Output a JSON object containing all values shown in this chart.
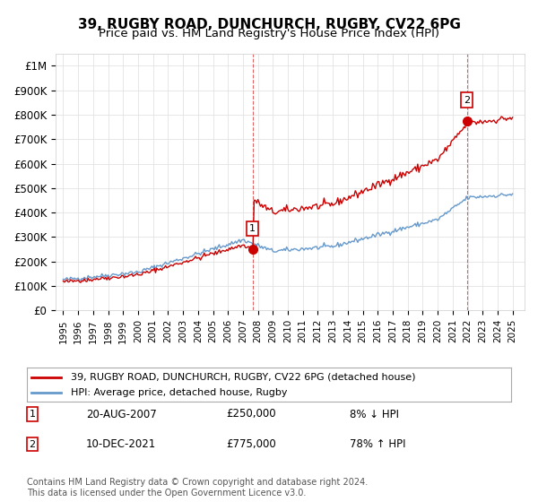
{
  "title": "39, RUGBY ROAD, DUNCHURCH, RUGBY, CV22 6PG",
  "subtitle": "Price paid vs. HM Land Registry's House Price Index (HPI)",
  "ytick_values": [
    0,
    100000,
    200000,
    300000,
    400000,
    500000,
    600000,
    700000,
    800000,
    900000,
    1000000
  ],
  "ylim": [
    0,
    1050000
  ],
  "purchase1": {
    "date_num": 2007.64,
    "price": 250000,
    "label": "1",
    "annotation": "20-AUG-2007",
    "amount": "£250,000",
    "pct": "8% ↓ HPI"
  },
  "purchase2": {
    "date_num": 2021.94,
    "price": 775000,
    "label": "2",
    "annotation": "10-DEC-2021",
    "amount": "£775,000",
    "pct": "78% ↑ HPI"
  },
  "legend_line1": "39, RUGBY ROAD, DUNCHURCH, RUGBY, CV22 6PG (detached house)",
  "legend_line2": "HPI: Average price, detached house, Rugby",
  "footnote": "Contains HM Land Registry data © Crown copyright and database right 2024.\nThis data is licensed under the Open Government Licence v3.0.",
  "line_color_red": "#cc0000",
  "line_color_blue": "#6699cc",
  "background_color": "#ffffff",
  "grid_color": "#dddddd",
  "xlabel_years": [
    1995,
    1996,
    1997,
    1998,
    1999,
    2000,
    2001,
    2002,
    2003,
    2004,
    2005,
    2006,
    2007,
    2008,
    2009,
    2010,
    2011,
    2012,
    2013,
    2014,
    2015,
    2016,
    2017,
    2018,
    2019,
    2020,
    2021,
    2022,
    2023,
    2024,
    2025
  ],
  "xlim": [
    1994.5,
    2025.8
  ]
}
